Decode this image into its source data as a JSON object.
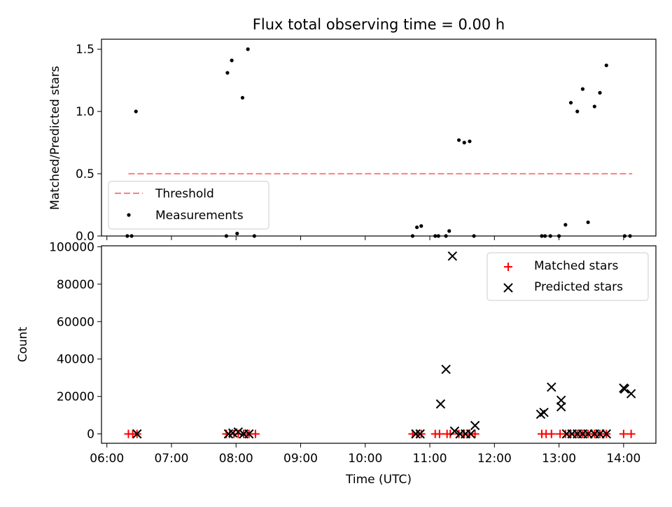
{
  "chart_data": [
    {
      "type": "scatter",
      "title": "Flux total observing time = 0.00 h",
      "xlabel": "",
      "ylabel": "Matched/Predicted stars",
      "ylim": [
        0,
        1.58
      ],
      "xlim": [
        "05:55",
        "14:30"
      ],
      "yticks": [
        0,
        0.5,
        1.0,
        1.5
      ],
      "ytick_labels": [
        "0.0",
        "0.5",
        "1.0",
        "1.5"
      ],
      "grid": false,
      "legend": "lower-left",
      "legend_entries": [
        "Threshold",
        "Measurements"
      ],
      "threshold": {
        "name": "Threshold",
        "value": 0.5,
        "x_start": "06:20",
        "x_end": "14:08",
        "color": "#ff7f7f"
      },
      "series": [
        {
          "name": "Measurements",
          "color": "#000000",
          "points": [
            [
              "06:19",
              0.0
            ],
            [
              "06:23",
              0.0
            ],
            [
              "06:27",
              1.0
            ],
            [
              "07:51",
              0.0
            ],
            [
              "07:52",
              1.31
            ],
            [
              "07:56",
              1.41
            ],
            [
              "08:01",
              0.02
            ],
            [
              "08:06",
              1.11
            ],
            [
              "08:11",
              1.5
            ],
            [
              "08:17",
              0.0
            ],
            [
              "10:44",
              0.0
            ],
            [
              "10:48",
              0.07
            ],
            [
              "10:52",
              0.08
            ],
            [
              "11:05",
              0.0
            ],
            [
              "11:08",
              0.0
            ],
            [
              "11:15",
              0.0
            ],
            [
              "11:18",
              0.04
            ],
            [
              "11:27",
              0.77
            ],
            [
              "11:32",
              0.75
            ],
            [
              "11:37",
              0.76
            ],
            [
              "11:41",
              0.0
            ],
            [
              "12:44",
              0.0
            ],
            [
              "12:47",
              0.0
            ],
            [
              "12:52",
              0.0
            ],
            [
              "13:00",
              0.0
            ],
            [
              "13:06",
              0.09
            ],
            [
              "13:11",
              1.07
            ],
            [
              "13:17",
              1.0
            ],
            [
              "13:22",
              1.18
            ],
            [
              "13:27",
              0.11
            ],
            [
              "13:33",
              1.04
            ],
            [
              "13:38",
              1.15
            ],
            [
              "13:44",
              1.37
            ],
            [
              "14:01",
              0.0
            ],
            [
              "14:06",
              0.0
            ]
          ]
        }
      ]
    },
    {
      "type": "scatter",
      "title": "",
      "xlabel": "Time (UTC)",
      "ylabel": "Count",
      "ylim": [
        -5000,
        100500
      ],
      "xlim": [
        "05:55",
        "14:30"
      ],
      "yticks": [
        0,
        20000,
        40000,
        60000,
        80000,
        100000
      ],
      "ytick_labels": [
        "0",
        "20000",
        "40000",
        "60000",
        "80000",
        "100000"
      ],
      "xticks": [
        "06:00",
        "07:00",
        "08:00",
        "09:00",
        "10:00",
        "11:00",
        "12:00",
        "13:00",
        "14:00"
      ],
      "grid": false,
      "legend": "top-right",
      "legend_entries": [
        "Matched stars",
        "Predicted stars"
      ],
      "series": [
        {
          "name": "Matched stars",
          "color": "#ff0000",
          "marker": "+",
          "points": [
            [
              "06:20",
              0
            ],
            [
              "06:24",
              0
            ],
            [
              "06:28",
              0
            ],
            [
              "07:51",
              0
            ],
            [
              "07:54",
              0
            ],
            [
              "07:58",
              0
            ],
            [
              "08:02",
              0
            ],
            [
              "08:07",
              0
            ],
            [
              "08:12",
              0
            ],
            [
              "08:18",
              0
            ],
            [
              "10:44",
              0
            ],
            [
              "10:48",
              0
            ],
            [
              "10:52",
              0
            ],
            [
              "11:05",
              0
            ],
            [
              "11:09",
              0
            ],
            [
              "11:16",
              0
            ],
            [
              "11:19",
              0
            ],
            [
              "11:27",
              0
            ],
            [
              "11:32",
              0
            ],
            [
              "11:37",
              0
            ],
            [
              "11:42",
              0
            ],
            [
              "12:44",
              0
            ],
            [
              "12:48",
              0
            ],
            [
              "12:53",
              0
            ],
            [
              "13:01",
              0
            ],
            [
              "13:06",
              0
            ],
            [
              "13:11",
              0
            ],
            [
              "13:17",
              0
            ],
            [
              "13:22",
              0
            ],
            [
              "13:27",
              0
            ],
            [
              "13:33",
              0
            ],
            [
              "13:38",
              0
            ],
            [
              "13:44",
              0
            ],
            [
              "14:00",
              0
            ],
            [
              "14:07",
              0
            ]
          ]
        },
        {
          "name": "Predicted stars",
          "color": "#000000",
          "marker": "x",
          "points": [
            [
              "06:28",
              0
            ],
            [
              "07:53",
              0
            ],
            [
              "07:57",
              500
            ],
            [
              "08:02",
              1000
            ],
            [
              "08:07",
              0
            ],
            [
              "08:12",
              0
            ],
            [
              "10:47",
              0
            ],
            [
              "10:51",
              0
            ],
            [
              "11:10",
              16000
            ],
            [
              "11:15",
              34500
            ],
            [
              "11:21",
              95000
            ],
            [
              "11:23",
              1500
            ],
            [
              "11:28",
              0
            ],
            [
              "11:33",
              0
            ],
            [
              "11:38",
              0
            ],
            [
              "11:42",
              4500
            ],
            [
              "12:43",
              10500
            ],
            [
              "12:46",
              11500
            ],
            [
              "12:53",
              25000
            ],
            [
              "13:02",
              18000
            ],
            [
              "13:02",
              14500
            ],
            [
              "13:07",
              0
            ],
            [
              "13:12",
              0
            ],
            [
              "13:17",
              0
            ],
            [
              "13:22",
              0
            ],
            [
              "13:27",
              0
            ],
            [
              "13:33",
              0
            ],
            [
              "13:38",
              0
            ],
            [
              "13:44",
              0
            ],
            [
              "14:00",
              24500
            ],
            [
              "14:01",
              24000
            ],
            [
              "14:07",
              21500
            ]
          ]
        }
      ]
    }
  ]
}
